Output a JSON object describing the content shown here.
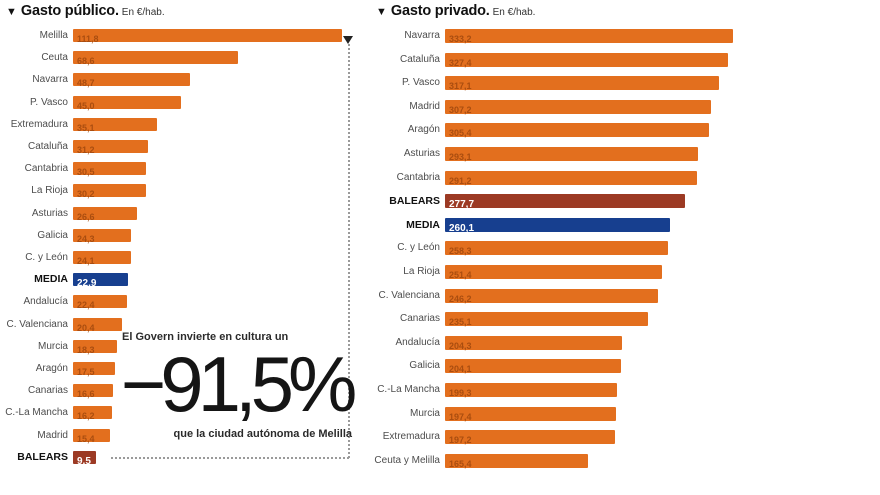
{
  "page": {
    "triangle": "▼"
  },
  "public": {
    "title": "Gasto público.",
    "unit": "En €/hab.",
    "rows": [
      {
        "label": "Melilla",
        "value": "111,8",
        "type": "region"
      },
      {
        "label": "Ceuta",
        "value": "68,6",
        "type": "region"
      },
      {
        "label": "Navarra",
        "value": "48,7",
        "type": "region"
      },
      {
        "label": "P. Vasco",
        "value": "45,0",
        "type": "region"
      },
      {
        "label": "Extremadura",
        "value": "35,1",
        "type": "region"
      },
      {
        "label": "Cataluña",
        "value": "31,2",
        "type": "region"
      },
      {
        "label": "Cantabria",
        "value": "30,5",
        "type": "region"
      },
      {
        "label": "La Rioja",
        "value": "30,2",
        "type": "region"
      },
      {
        "label": "Asturias",
        "value": "26,6",
        "type": "region"
      },
      {
        "label": "Galicia",
        "value": "24,3",
        "type": "region"
      },
      {
        "label": "C. y León",
        "value": "24,1",
        "type": "region"
      },
      {
        "label": "MEDIA",
        "value": "22,9",
        "type": "media"
      },
      {
        "label": "Andalucía",
        "value": "22,4",
        "type": "region"
      },
      {
        "label": "C. Valenciana",
        "value": "20,4",
        "type": "region"
      },
      {
        "label": "Murcia",
        "value": "18,3",
        "type": "region"
      },
      {
        "label": "Aragón",
        "value": "17,5",
        "type": "region"
      },
      {
        "label": "Canarias",
        "value": "16,6",
        "type": "region"
      },
      {
        "label": "C.-La Mancha",
        "value": "16,2",
        "type": "region"
      },
      {
        "label": "Madrid",
        "value": "15,4",
        "type": "region"
      },
      {
        "label": "BALEARS",
        "value": "9,5",
        "type": "balears"
      }
    ]
  },
  "private": {
    "title": "Gasto privado.",
    "unit": "En €/hab.",
    "rows": [
      {
        "label": "Navarra",
        "value": "333,2",
        "type": "region"
      },
      {
        "label": "Cataluña",
        "value": "327,4",
        "type": "region"
      },
      {
        "label": "P. Vasco",
        "value": "317,1",
        "type": "region"
      },
      {
        "label": "Madrid",
        "value": "307,2",
        "type": "region"
      },
      {
        "label": "Aragón",
        "value": "305,4",
        "type": "region"
      },
      {
        "label": "Asturias",
        "value": "293,1",
        "type": "region"
      },
      {
        "label": "Cantabria",
        "value": "291,2",
        "type": "region"
      },
      {
        "label": "BALEARS",
        "value": "277,7",
        "type": "balears"
      },
      {
        "label": "MEDIA",
        "value": "260,1",
        "type": "media"
      },
      {
        "label": "C. y León",
        "value": "258,3",
        "type": "region"
      },
      {
        "label": "La Rioja",
        "value": "251,4",
        "type": "region"
      },
      {
        "label": "C. Valenciana",
        "value": "246,2",
        "type": "region"
      },
      {
        "label": "Canarias",
        "value": "235,1",
        "type": "region"
      },
      {
        "label": "Andalucía",
        "value": "204,3",
        "type": "region"
      },
      {
        "label": "Galicia",
        "value": "204,1",
        "type": "region"
      },
      {
        "label": "C.-La Mancha",
        "value": "199,3",
        "type": "region"
      },
      {
        "label": "Murcia",
        "value": "197,4",
        "type": "region"
      },
      {
        "label": "Extremadura",
        "value": "197,2",
        "type": "region"
      },
      {
        "label": "Ceuta y Melilla",
        "value": "165,4",
        "type": "region"
      }
    ]
  },
  "annotation": {
    "line1": "El Govern invierte en cultura un",
    "big": "−91,5%",
    "line2": "que la ciudad autónoma de Melilla"
  },
  "colors": {
    "orange": "#e36f1e",
    "blue": "#173f8f",
    "maroon": "#9c3a24",
    "value_on_orange": "#9c450c",
    "label": "#4d4d4d",
    "dotted": "#9a9a9a"
  },
  "chart_data": [
    {
      "type": "bar",
      "orientation": "horizontal",
      "title": "Gasto público",
      "unit": "En €/hab.",
      "categories": [
        "Melilla",
        "Ceuta",
        "Navarra",
        "P. Vasco",
        "Extremadura",
        "Cataluña",
        "Cantabria",
        "La Rioja",
        "Asturias",
        "Galicia",
        "C. y León",
        "MEDIA",
        "Andalucía",
        "C. Valenciana",
        "Murcia",
        "Aragón",
        "Canarias",
        "C.-La Mancha",
        "Madrid",
        "BALEARS"
      ],
      "values": [
        111.8,
        68.6,
        48.7,
        45.0,
        35.1,
        31.2,
        30.5,
        30.2,
        26.6,
        24.3,
        24.1,
        22.9,
        22.4,
        20.4,
        18.3,
        17.5,
        16.6,
        16.2,
        15.4,
        9.5
      ],
      "bar_color": "#e36f1e",
      "highlight_rows": {
        "MEDIA": "#173f8f",
        "BALEARS": "#9c3a24"
      },
      "annotation": "El Govern invierte en cultura un −91,5% que la ciudad autónoma de Melilla",
      "xlim": [
        0,
        115
      ],
      "grid": false,
      "legend": false
    },
    {
      "type": "bar",
      "orientation": "horizontal",
      "title": "Gasto privado",
      "unit": "En €/hab.",
      "categories": [
        "Navarra",
        "Cataluña",
        "P. Vasco",
        "Madrid",
        "Aragón",
        "Asturias",
        "Cantabria",
        "BALEARS",
        "MEDIA",
        "C. y León",
        "La Rioja",
        "C. Valenciana",
        "Canarias",
        "Andalucía",
        "Galicia",
        "C.-La Mancha",
        "Murcia",
        "Extremadura",
        "Ceuta y Melilla"
      ],
      "values": [
        333.2,
        327.4,
        317.1,
        307.2,
        305.4,
        293.1,
        291.2,
        277.7,
        260.1,
        258.3,
        251.4,
        246.2,
        235.1,
        204.3,
        204.1,
        199.3,
        197.4,
        197.2,
        165.4
      ],
      "bar_color": "#e36f1e",
      "highlight_rows": {
        "BALEARS": "#9c3a24",
        "MEDIA": "#173f8f"
      },
      "xlim": [
        0,
        345
      ],
      "grid": false,
      "legend": false
    }
  ]
}
